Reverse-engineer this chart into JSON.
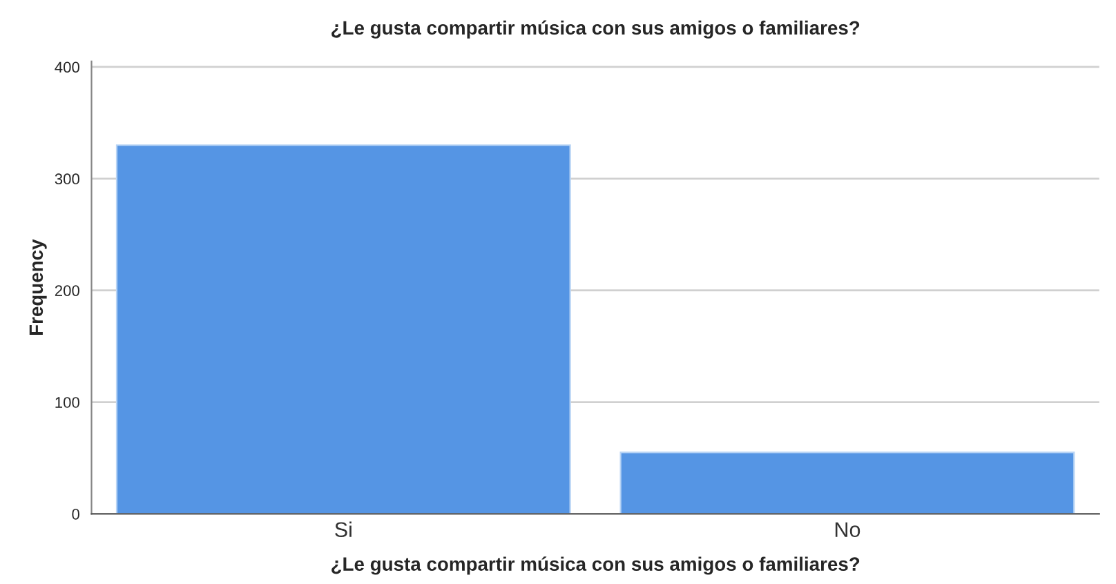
{
  "chart_data": {
    "type": "bar",
    "title": "¿Le gusta compartir música con sus amigos o familiares?",
    "xlabel": "¿Le gusta compartir música con sus amigos o familiares?",
    "ylabel": "Frequency",
    "categories": [
      "Si",
      "No"
    ],
    "values": [
      330,
      55
    ],
    "color": "#5595e4",
    "ylim": [
      0,
      405
    ],
    "yticks": [
      0,
      100,
      200,
      300,
      400
    ],
    "grid": "y"
  }
}
